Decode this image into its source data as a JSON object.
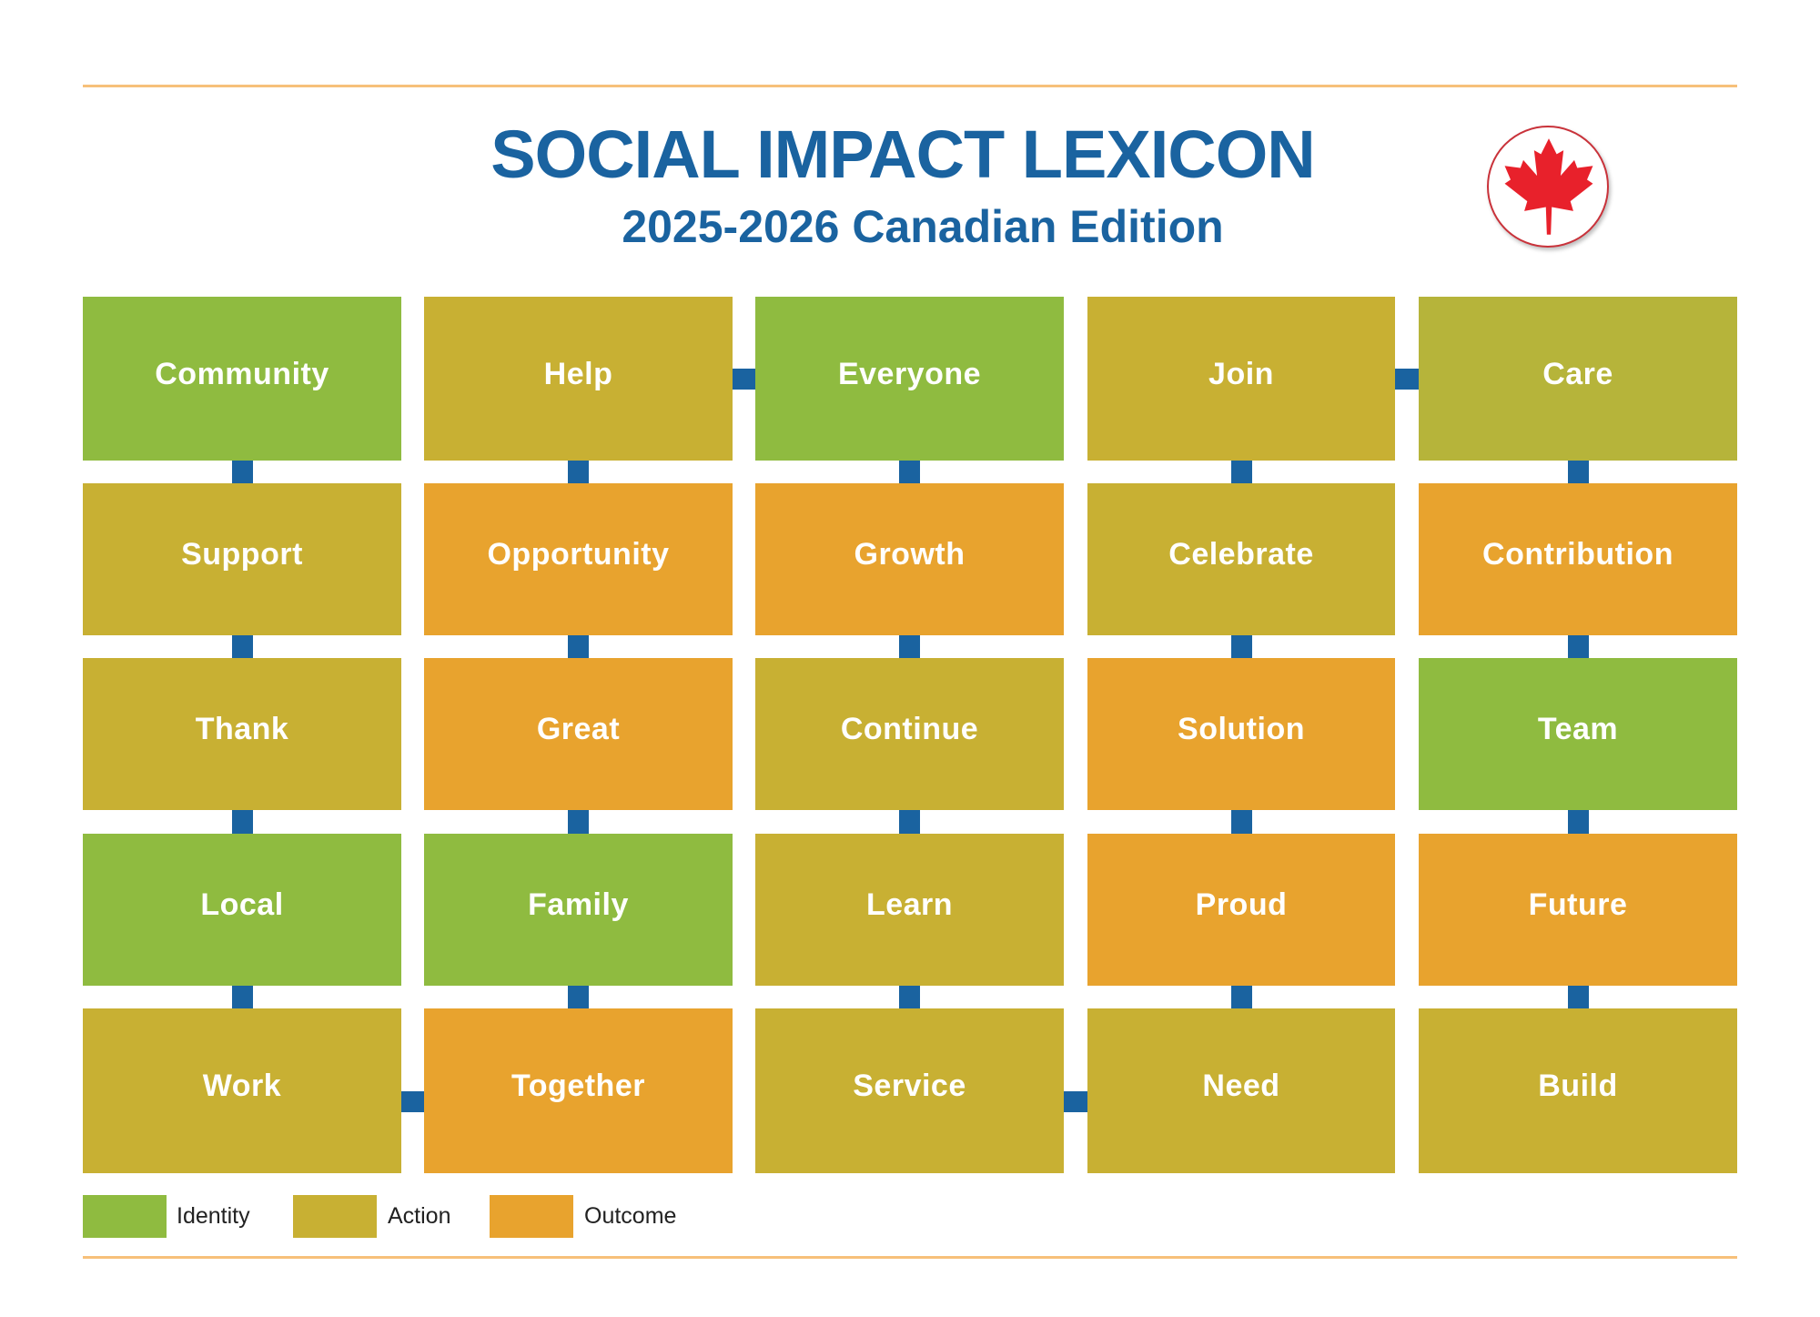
{
  "header": {
    "title": "SOCIAL IMPACT LEXICON",
    "subtitle": "2025-2026 Canadian Edition",
    "badge_icon": "maple-leaf-icon"
  },
  "colors": {
    "identity": "#8fbb40",
    "action": "#c8b033",
    "action_alt": "#b6b43a",
    "outcome": "#e8a32e",
    "connector": "#1a63a0",
    "title": "#1a63a0",
    "rule": "#f7c07a",
    "maple_leaf": "#e8212b"
  },
  "grid": {
    "rows": [
      [
        {
          "word": "Community",
          "category": "identity"
        },
        {
          "word": "Help",
          "category": "action"
        },
        {
          "word": "Everyone",
          "category": "identity"
        },
        {
          "word": "Join",
          "category": "action"
        },
        {
          "word": "Care",
          "category": "action",
          "color_variant": "action_alt"
        }
      ],
      [
        {
          "word": "Support",
          "category": "action"
        },
        {
          "word": "Opportunity",
          "category": "outcome"
        },
        {
          "word": "Growth",
          "category": "outcome"
        },
        {
          "word": "Celebrate",
          "category": "action"
        },
        {
          "word": "Contribution",
          "category": "outcome"
        }
      ],
      [
        {
          "word": "Thank",
          "category": "action"
        },
        {
          "word": "Great",
          "category": "outcome"
        },
        {
          "word": "Continue",
          "category": "action"
        },
        {
          "word": "Solution",
          "category": "outcome"
        },
        {
          "word": "Team",
          "category": "identity"
        }
      ],
      [
        {
          "word": "Local",
          "category": "identity"
        },
        {
          "word": "Family",
          "category": "identity"
        },
        {
          "word": "Learn",
          "category": "action"
        },
        {
          "word": "Proud",
          "category": "outcome"
        },
        {
          "word": "Future",
          "category": "outcome"
        }
      ],
      [
        {
          "word": "Work",
          "category": "action"
        },
        {
          "word": "Together",
          "category": "outcome"
        },
        {
          "word": "Service",
          "category": "action"
        },
        {
          "word": "Need",
          "category": "action"
        },
        {
          "word": "Build",
          "category": "action"
        }
      ]
    ],
    "vertical_links": "all-adjacent-rows-in-each-column",
    "horizontal_links": [
      {
        "row": 1,
        "from_col": 2,
        "to_col": 3
      },
      {
        "row": 1,
        "from_col": 4,
        "to_col": 5
      },
      {
        "row": 5,
        "from_col": 1,
        "to_col": 2
      },
      {
        "row": 5,
        "from_col": 3,
        "to_col": 4
      }
    ]
  },
  "legend": [
    {
      "label": "Identity",
      "category": "identity"
    },
    {
      "label": "Action",
      "category": "action"
    },
    {
      "label": "Outcome",
      "category": "outcome"
    }
  ]
}
